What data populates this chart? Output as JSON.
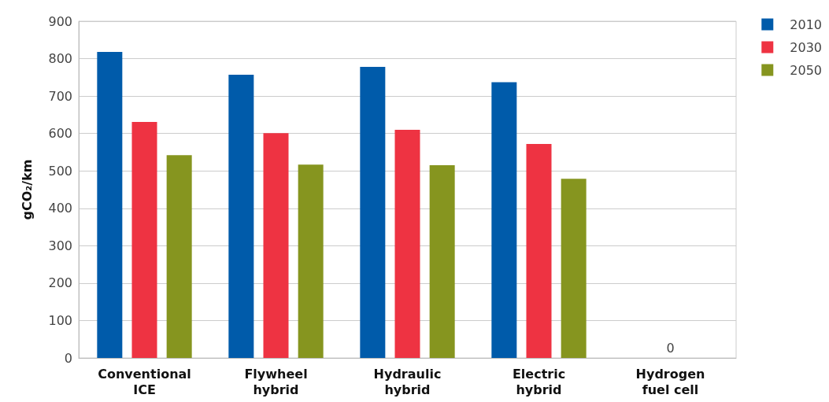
{
  "chart_data": {
    "type": "bar",
    "ylabel": "gCO₂/km",
    "categories": [
      "Conventional\nICE",
      "Flywheel\nhybrid",
      "Hydraulic\nhybrid",
      "Electric\nhybrid",
      "Hydrogen\nfuel cell"
    ],
    "series": [
      {
        "name": "2010",
        "color": "#005baa",
        "values": [
          818,
          757,
          778,
          737,
          0
        ]
      },
      {
        "name": "2030",
        "color": "#ee3342",
        "values": [
          631,
          601,
          610,
          572,
          0
        ],
        "value_labels": [
          null,
          null,
          null,
          null,
          "0"
        ]
      },
      {
        "name": "2050",
        "color": "#86951f",
        "values": [
          542,
          517,
          515,
          479,
          0
        ]
      }
    ],
    "ylim": [
      0,
      900
    ],
    "yticks": [
      0,
      100,
      200,
      300,
      400,
      500,
      600,
      700,
      800,
      900
    ],
    "grid": "y",
    "legend": "top right"
  }
}
